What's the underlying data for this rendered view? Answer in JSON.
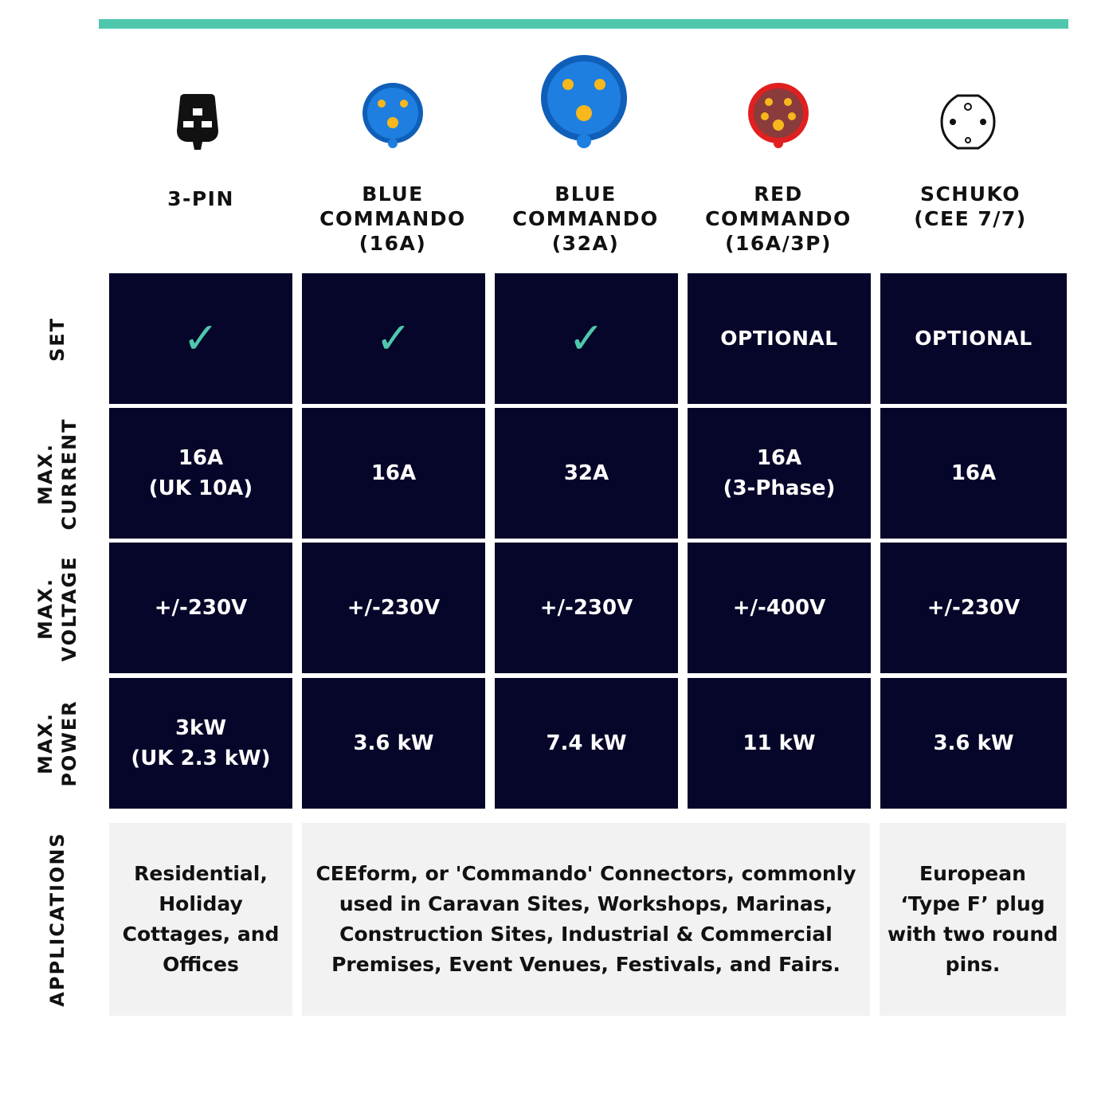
{
  "colors": {
    "accent": "#4fc7ad",
    "cell_dark": "#06062a",
    "cell_light": "#f2f2f2",
    "blue_plug": "#1877d6",
    "red_plug": "#d81e1e",
    "pin_yellow": "#f7b71d"
  },
  "columns": [
    {
      "icon": "uk-3-pin-plug-icon",
      "label": "3-PIN"
    },
    {
      "icon": "blue-commando-16a-plug-icon",
      "label": "BLUE\nCOMMANDO\n(16A)"
    },
    {
      "icon": "blue-commando-32a-plug-icon",
      "label": "BLUE\nCOMMANDO\n(32A)"
    },
    {
      "icon": "red-commando-plug-icon",
      "label": "RED\nCOMMANDO\n(16A/3P)"
    },
    {
      "icon": "schuko-plug-icon",
      "label": "SCHUKO\n(CEE 7/7)"
    }
  ],
  "rows": {
    "set": {
      "label": "SET",
      "values": [
        "✓",
        "✓",
        "✓",
        "OPTIONAL",
        "OPTIONAL"
      ]
    },
    "max_current": {
      "label": "MAX.\nCURRENT",
      "values": [
        "16A\n(UK 10A)",
        "16A",
        "32A",
        "16A\n(3-Phase)",
        "16A"
      ]
    },
    "max_voltage": {
      "label": "MAX.\nVOLTAGE",
      "values": [
        "+/-230V",
        "+/-230V",
        "+/-230V",
        "+/-400V",
        "+/-230V"
      ]
    },
    "max_power": {
      "label": "MAX.\nPOWER",
      "values": [
        "3kW\n(UK 2.3 kW)",
        "3.6 kW",
        "7.4 kW",
        "11 kW",
        "3.6 kW"
      ]
    },
    "applications": {
      "label": "APPLICATIONS",
      "values": [
        "Residential,\nHoliday\nCottages, and\nOffices",
        "CEEform, or 'Commando' Connectors, commonly\nused in Caravan Sites, Workshops, Marinas,\nConstruction Sites, Industrial & Commercial\nPremises, Event Venues, Festivals, and Fairs.",
        "European\n‘Type F’ plug\nwith two round\npins."
      ]
    }
  }
}
